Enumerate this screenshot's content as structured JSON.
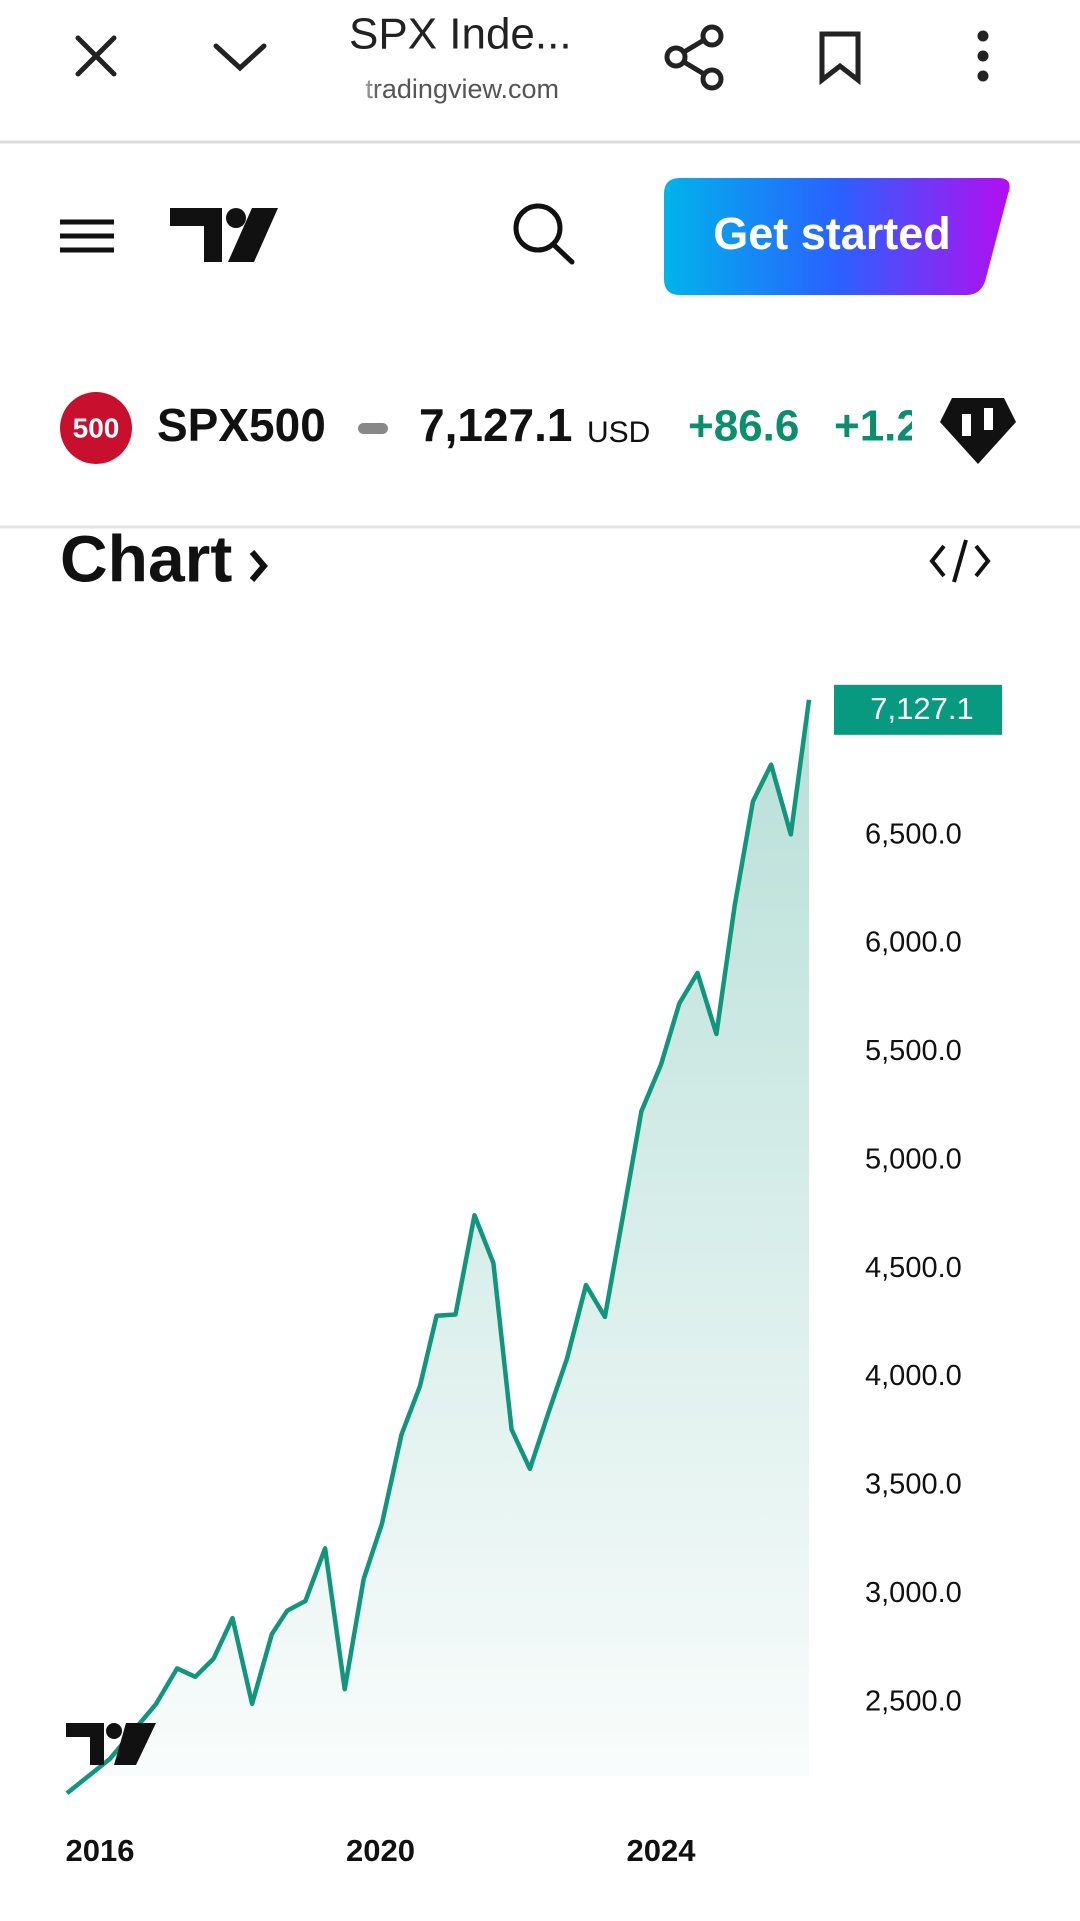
{
  "browser": {
    "title": "SPX Inde...",
    "url": "tradingview.com"
  },
  "header": {
    "button": "Get started"
  },
  "ticker": {
    "badge": "500",
    "symbol": "SPX500",
    "price": "7,127.1",
    "currency": "USD",
    "change": "+86.6",
    "change_pct": "+1.2"
  },
  "section": {
    "title": "Chart"
  },
  "chart_data": {
    "type": "line",
    "color": "#12957d",
    "x": [
      2015.53,
      2016.14,
      2016.8,
      2017.1,
      2017.36,
      2017.62,
      2017.89,
      2018.17,
      2018.45,
      2018.67,
      2018.93,
      2019.21,
      2019.49,
      2019.76,
      2020.02,
      2020.3,
      2020.56,
      2020.8,
      2021.07,
      2021.34,
      2021.61,
      2021.87,
      2022.13,
      2022.39,
      2022.66,
      2022.93,
      2023.2,
      2023.46,
      2023.72,
      2024.0,
      2024.26,
      2024.52,
      2024.79,
      2025.05,
      2025.31,
      2025.57,
      2025.85,
      2026.11
    ],
    "values": [
      2082,
      2240,
      2494,
      2658,
      2619,
      2703,
      2890,
      2494,
      2816,
      2924,
      2969,
      3212,
      2562,
      3071,
      3325,
      3737,
      3958,
      4285,
      4291,
      4749,
      4528,
      3760,
      3579,
      3833,
      4088,
      4427,
      4280,
      4749,
      5229,
      5444,
      5726,
      5867,
      5585,
      6178,
      6658,
      6828,
      6506,
      7127.1
    ],
    "value_labels": [
      null,
      null,
      null,
      null,
      null,
      null,
      null,
      null,
      null,
      null,
      null,
      null,
      null,
      null,
      null,
      null,
      null,
      null,
      null,
      null,
      null,
      null,
      null,
      null,
      null,
      null,
      null,
      null,
      null,
      null,
      null,
      null,
      null,
      null,
      null,
      null,
      null,
      "7,127.1"
    ],
    "xlim": [
      2015.53,
      2026.11
    ],
    "xticks": [
      2016,
      2020,
      2024
    ],
    "ylim": [
      2000,
      7500
    ],
    "yticks": [
      {
        "value": 2500,
        "label": "2,500.0"
      },
      {
        "value": 3000,
        "label": "3,000.0"
      },
      {
        "value": 3500,
        "label": "3,500.0"
      },
      {
        "value": 4000,
        "label": "4,000.0"
      },
      {
        "value": 4500,
        "label": "4,500.0"
      },
      {
        "value": 5000,
        "label": "5,000.0"
      },
      {
        "value": 5500,
        "label": "5,500.0"
      },
      {
        "value": 6000,
        "label": "6,000.0"
      },
      {
        "value": 6500,
        "label": "6,500.0"
      }
    ]
  }
}
